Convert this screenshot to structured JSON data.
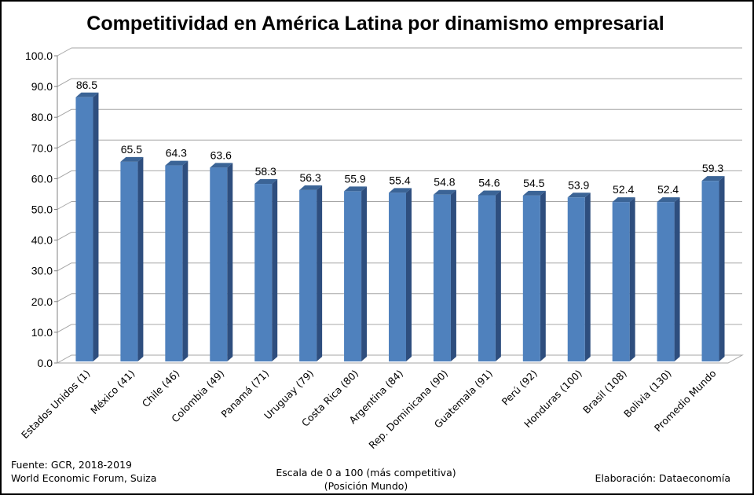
{
  "chart_data": {
    "type": "bar",
    "title": "Competitividad en América Latina por dinamismo empresarial",
    "categories": [
      "Estados Unidos (1)",
      "México (41)",
      "Chile (46)",
      "Colombia (49)",
      "Panamá (71)",
      "Uruguay (79)",
      "Costa Rica (80)",
      "Argentina (84)",
      "Rep. Dominicana (90)",
      "Guatemala (91)",
      "Perú (92)",
      "Honduras (100)",
      "Brasil (108)",
      "Bolivia (130)",
      "Promedio Mundo"
    ],
    "values": [
      86.5,
      65.5,
      64.3,
      63.6,
      58.3,
      56.3,
      55.9,
      55.4,
      54.8,
      54.6,
      54.5,
      53.9,
      52.4,
      52.4,
      59.3
    ],
    "value_labels": [
      "86.5",
      "65.5",
      "64.3",
      "63.6",
      "58.3",
      "56.3",
      "55.9",
      "55.4",
      "54.8",
      "54.6",
      "54.5",
      "53.9",
      "52.4",
      "52.4",
      "59.3"
    ],
    "ylim": [
      0,
      100
    ],
    "yticks": [
      "0.0",
      "10.0",
      "20.0",
      "30.0",
      "40.0",
      "50.0",
      "60.0",
      "70.0",
      "80.0",
      "90.0",
      "100.0"
    ],
    "grid": true,
    "legend": "none",
    "bar_color": "#4F81BD",
    "bar_side_color": "#2E4E7E",
    "bar_top_color": "#3B6496"
  },
  "footer": {
    "source_line1": "Fuente:  GCR, 2018-2019",
    "source_line2": "World Economic Forum, Suiza",
    "scale_line1": "Escala de 0 a 100 (más competitiva)",
    "scale_line2": "(Posición Mundo)",
    "credit": "Elaboración: Dataeconomía"
  }
}
